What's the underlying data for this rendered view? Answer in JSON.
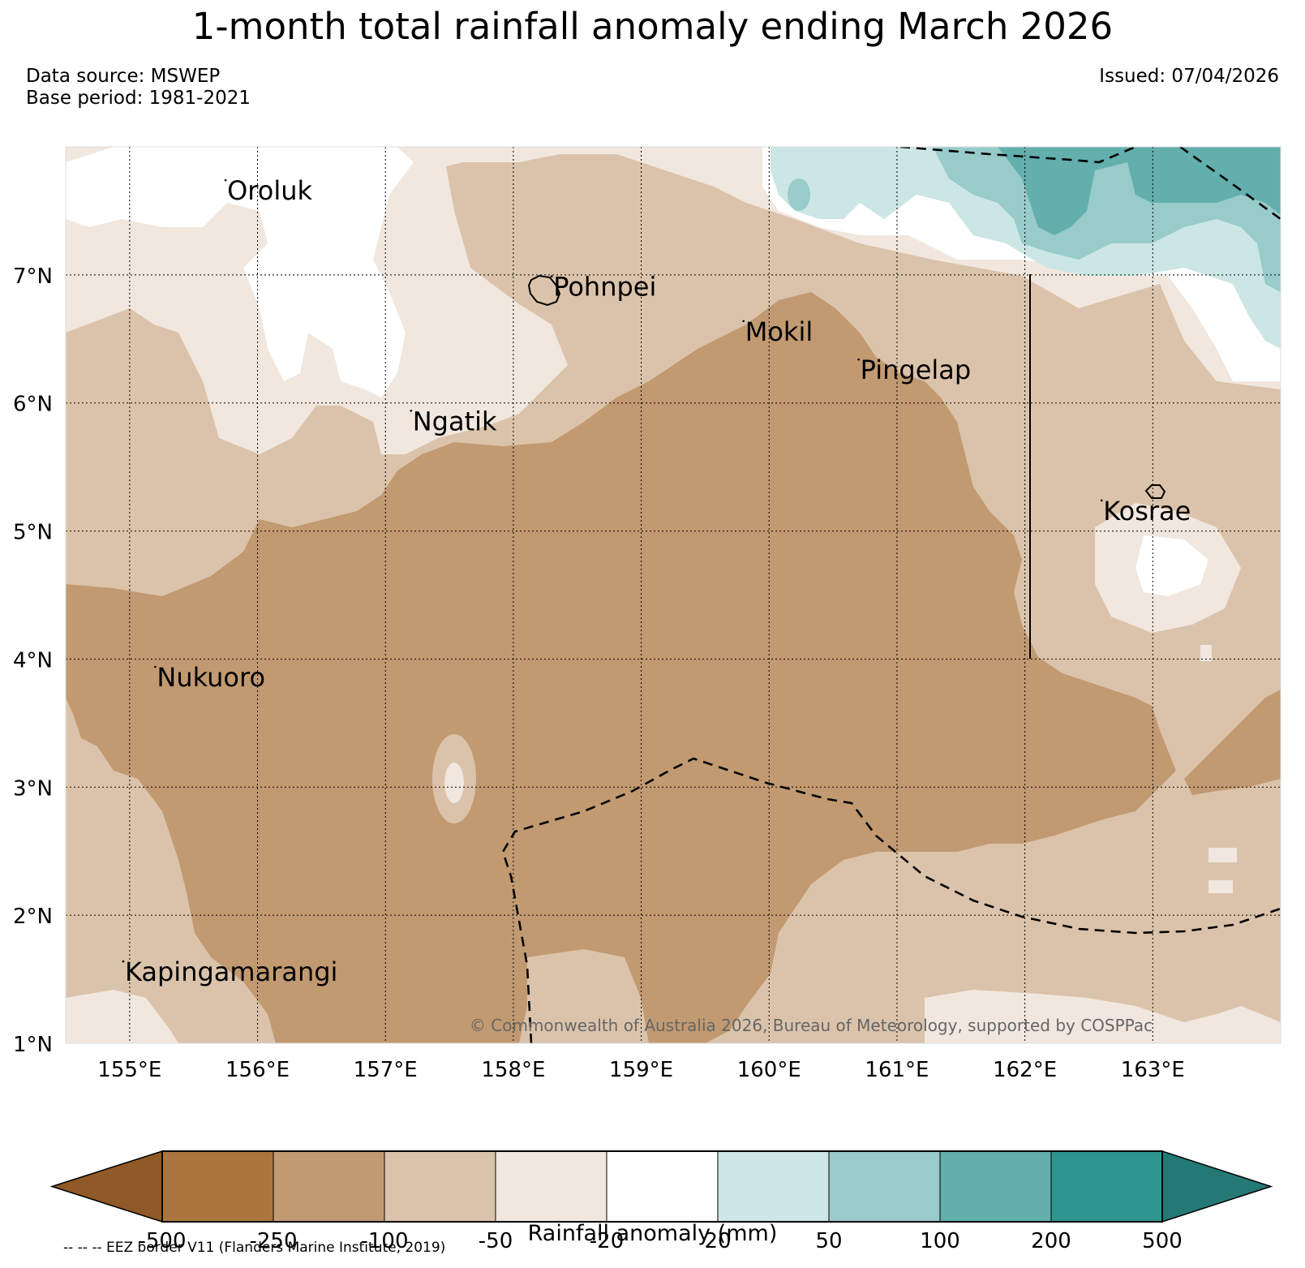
{
  "title": "1-month total rainfall anomaly ending March 2026",
  "data_source": "Data source: MSWEP",
  "base_period": "Base period: 1981-2021",
  "issued": "Issued: 07/04/2026",
  "copyright": "© Commonwealth of Australia 2026, Bureau of Meteorology, supported by COSPPac",
  "map": {
    "lon_range": [
      154.5,
      164.0
    ],
    "lat_range": [
      1.0,
      8.0
    ],
    "lon_ticks": [
      155,
      156,
      157,
      158,
      159,
      160,
      161,
      162,
      163
    ],
    "lat_ticks": [
      1,
      2,
      3,
      4,
      5,
      6,
      7
    ],
    "lon_labels": [
      "155°E",
      "156°E",
      "157°E",
      "158°E",
      "159°E",
      "160°E",
      "161°E",
      "162°E",
      "163°E"
    ],
    "lat_labels": [
      "1°N",
      "2°N",
      "3°N",
      "4°N",
      "5°N",
      "6°N",
      "7°N"
    ]
  },
  "places": [
    {
      "name": "Oroluk",
      "lon": 155.75,
      "lat": 7.6
    },
    {
      "name": "Pohnpei",
      "lon": 158.3,
      "lat": 6.85
    },
    {
      "name": "Mokil",
      "lon": 159.8,
      "lat": 6.5
    },
    {
      "name": "Pingelap",
      "lon": 160.7,
      "lat": 6.2
    },
    {
      "name": "Ngatik",
      "lon": 157.2,
      "lat": 5.8
    },
    {
      "name": "Kosrae",
      "lon": 162.6,
      "lat": 5.1
    },
    {
      "name": "Nukuoro",
      "lon": 155.2,
      "lat": 3.8
    },
    {
      "name": "Kapingamarangi",
      "lon": 154.95,
      "lat": 1.5
    }
  ],
  "colorbar": {
    "label": "Rainfall anomaly (mm)",
    "ticks": [
      "-500",
      "-250",
      "-100",
      "-50",
      "-20",
      "20",
      "50",
      "100",
      "200",
      "500"
    ],
    "colors": [
      "#8f5a27",
      "#ab753f",
      "#c29a71",
      "#dbc3ab",
      "#f1e7de",
      "#ffffff",
      "#cbe6e5",
      "#98cbca",
      "#62afad",
      "#2e9590",
      "#247977"
    ]
  },
  "footnote": "-- -- -- EEZ border V11 (Flanders Marine Institute, 2019)"
}
